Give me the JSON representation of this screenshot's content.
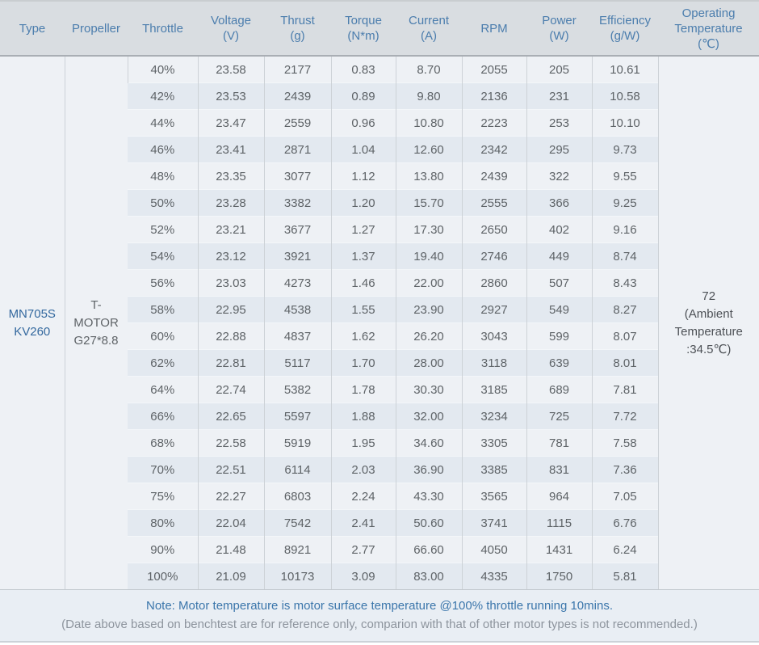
{
  "chart_data": {
    "type": "table",
    "title": "Motor benchtest data table",
    "columns": [
      {
        "label": "Type",
        "unit": ""
      },
      {
        "label": "Propeller",
        "unit": ""
      },
      {
        "label": "Throttle",
        "unit": ""
      },
      {
        "label": "Voltage",
        "unit": "(V)"
      },
      {
        "label": "Thrust",
        "unit": "(g)"
      },
      {
        "label": "Torque",
        "unit": "(N*m)"
      },
      {
        "label": "Current",
        "unit": "(A)"
      },
      {
        "label": "RPM",
        "unit": ""
      },
      {
        "label": "Power",
        "unit": "(W)"
      },
      {
        "label": "Efficiency",
        "unit": "(g/W)"
      },
      {
        "label": "Operating Temperature",
        "unit": "(℃)"
      }
    ],
    "merged": {
      "type": "MN705S KV260",
      "propeller": "T-MOTOR G27*8.8",
      "operating_temperature": "72\n(Ambient\nTemperature\n:34.5℃)"
    },
    "rows": [
      {
        "throttle": "40%",
        "voltage": "23.58",
        "thrust": "2177",
        "torque": "0.83",
        "current": "8.70",
        "rpm": "2055",
        "power": "205",
        "efficiency": "10.61"
      },
      {
        "throttle": "42%",
        "voltage": "23.53",
        "thrust": "2439",
        "torque": "0.89",
        "current": "9.80",
        "rpm": "2136",
        "power": "231",
        "efficiency": "10.58"
      },
      {
        "throttle": "44%",
        "voltage": "23.47",
        "thrust": "2559",
        "torque": "0.96",
        "current": "10.80",
        "rpm": "2223",
        "power": "253",
        "efficiency": "10.10"
      },
      {
        "throttle": "46%",
        "voltage": "23.41",
        "thrust": "2871",
        "torque": "1.04",
        "current": "12.60",
        "rpm": "2342",
        "power": "295",
        "efficiency": "9.73"
      },
      {
        "throttle": "48%",
        "voltage": "23.35",
        "thrust": "3077",
        "torque": "1.12",
        "current": "13.80",
        "rpm": "2439",
        "power": "322",
        "efficiency": "9.55"
      },
      {
        "throttle": "50%",
        "voltage": "23.28",
        "thrust": "3382",
        "torque": "1.20",
        "current": "15.70",
        "rpm": "2555",
        "power": "366",
        "efficiency": "9.25"
      },
      {
        "throttle": "52%",
        "voltage": "23.21",
        "thrust": "3677",
        "torque": "1.27",
        "current": "17.30",
        "rpm": "2650",
        "power": "402",
        "efficiency": "9.16"
      },
      {
        "throttle": "54%",
        "voltage": "23.12",
        "thrust": "3921",
        "torque": "1.37",
        "current": "19.40",
        "rpm": "2746",
        "power": "449",
        "efficiency": "8.74"
      },
      {
        "throttle": "56%",
        "voltage": "23.03",
        "thrust": "4273",
        "torque": "1.46",
        "current": "22.00",
        "rpm": "2860",
        "power": "507",
        "efficiency": "8.43"
      },
      {
        "throttle": "58%",
        "voltage": "22.95",
        "thrust": "4538",
        "torque": "1.55",
        "current": "23.90",
        "rpm": "2927",
        "power": "549",
        "efficiency": "8.27"
      },
      {
        "throttle": "60%",
        "voltage": "22.88",
        "thrust": "4837",
        "torque": "1.62",
        "current": "26.20",
        "rpm": "3043",
        "power": "599",
        "efficiency": "8.07"
      },
      {
        "throttle": "62%",
        "voltage": "22.81",
        "thrust": "5117",
        "torque": "1.70",
        "current": "28.00",
        "rpm": "3118",
        "power": "639",
        "efficiency": "8.01"
      },
      {
        "throttle": "64%",
        "voltage": "22.74",
        "thrust": "5382",
        "torque": "1.78",
        "current": "30.30",
        "rpm": "3185",
        "power": "689",
        "efficiency": "7.81"
      },
      {
        "throttle": "66%",
        "voltage": "22.65",
        "thrust": "5597",
        "torque": "1.88",
        "current": "32.00",
        "rpm": "3234",
        "power": "725",
        "efficiency": "7.72"
      },
      {
        "throttle": "68%",
        "voltage": "22.58",
        "thrust": "5919",
        "torque": "1.95",
        "current": "34.60",
        "rpm": "3305",
        "power": "781",
        "efficiency": "7.58"
      },
      {
        "throttle": "70%",
        "voltage": "22.51",
        "thrust": "6114",
        "torque": "2.03",
        "current": "36.90",
        "rpm": "3385",
        "power": "831",
        "efficiency": "7.36"
      },
      {
        "throttle": "75%",
        "voltage": "22.27",
        "thrust": "6803",
        "torque": "2.24",
        "current": "43.30",
        "rpm": "3565",
        "power": "964",
        "efficiency": "7.05"
      },
      {
        "throttle": "80%",
        "voltage": "22.04",
        "thrust": "7542",
        "torque": "2.41",
        "current": "50.60",
        "rpm": "3741",
        "power": "1115",
        "efficiency": "6.76"
      },
      {
        "throttle": "90%",
        "voltage": "21.48",
        "thrust": "8921",
        "torque": "2.77",
        "current": "66.60",
        "rpm": "4050",
        "power": "1431",
        "efficiency": "6.24"
      },
      {
        "throttle": "100%",
        "voltage": "21.09",
        "thrust": "10173",
        "torque": "3.09",
        "current": "83.00",
        "rpm": "4335",
        "power": "1750",
        "efficiency": "5.81"
      }
    ]
  },
  "notes": {
    "line1": "Note: Motor temperature is motor surface temperature @100% throttle running 10mins.",
    "line2": "(Date above based on benchtest are for reference only, comparion with that of other motor types is not recommended.)"
  },
  "colors": {
    "header_bg": "#d9dde1",
    "header_text": "#4b7dad",
    "row_light": "#eef1f5",
    "row_dark": "#e3e9f0",
    "body_text": "#5e6367",
    "type_link_blue": "#33689e",
    "note_blue": "#3b76ab",
    "note_gray": "#8d949d",
    "footer_bg": "#e9eef4"
  }
}
